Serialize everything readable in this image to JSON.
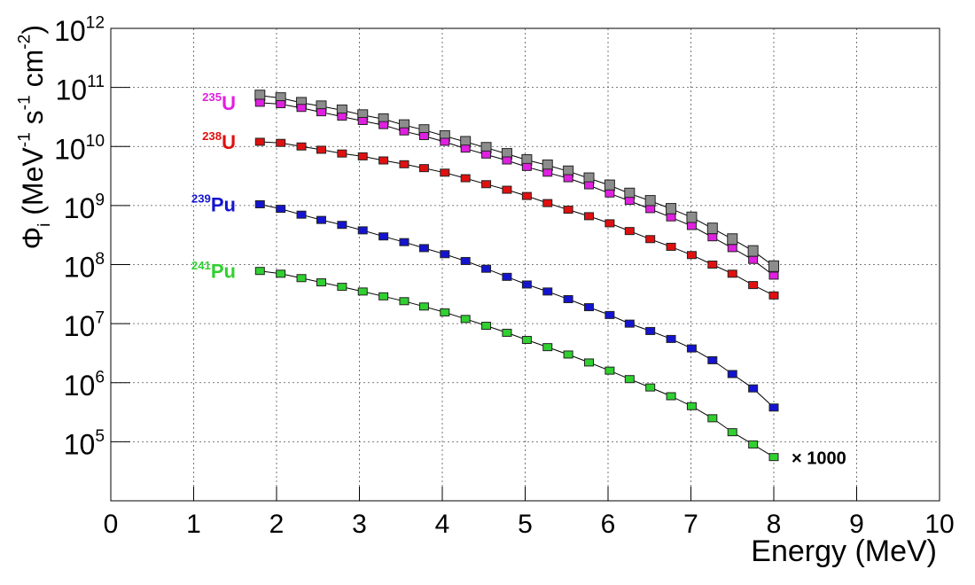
{
  "chart_data": {
    "type": "line",
    "x_label": "Energy (MeV)",
    "y_label": "Φ_{i} (MeV^{-1} s^{-1} cm^{-2})",
    "log_y": true,
    "grid": true,
    "xlim": [
      0,
      10
    ],
    "xticks": [
      0,
      1,
      2,
      3,
      4,
      5,
      6,
      7,
      8,
      9,
      10
    ],
    "ylim": [
      10000,
      1000000000000
    ],
    "yticks": [
      {
        "value": 100000,
        "label": "10^{5}"
      },
      {
        "value": 1000000,
        "label": "10^{6}"
      },
      {
        "value": 10000000,
        "label": "10^{7}"
      },
      {
        "value": 100000000,
        "label": "10^{8}"
      },
      {
        "value": 1000000000,
        "label": "10^{9}"
      },
      {
        "value": 10000000000,
        "label": "10^{10}"
      },
      {
        "value": 100000000000,
        "label": "10^{11}"
      },
      {
        "value": 1000000000000,
        "label": "10^{12}"
      }
    ],
    "x": [
      1.8,
      2.05,
      2.3,
      2.54,
      2.79,
      3.04,
      3.29,
      3.54,
      3.78,
      4.03,
      4.28,
      4.53,
      4.78,
      5.02,
      5.27,
      5.52,
      5.77,
      6.02,
      6.26,
      6.51,
      6.76,
      7.01,
      7.26,
      7.5,
      7.75,
      8.0
    ],
    "series": [
      {
        "color": "#8c8c8c",
        "values": [
          73000000000.0,
          66000000000.0,
          55000000000.0,
          48000000000.0,
          41000000000.0,
          34000000000.0,
          29000000000.0,
          23000000000.0,
          19000000000.0,
          15000000000.0,
          12000000000.0,
          9500000000.0,
          7500000000.0,
          5900000000.0,
          4800000000.0,
          3800000000.0,
          2900000000.0,
          2200000000.0,
          1600000000.0,
          1200000000.0,
          880000000.0,
          630000000.0,
          410000000.0,
          270000000.0,
          170000000.0,
          94000000.0
        ]
      },
      {
        "name": "^{235}U",
        "color": "#e020e0",
        "values": [
          55000000000.0,
          52000000000.0,
          45000000000.0,
          38000000000.0,
          32000000000.0,
          27000000000.0,
          23000000000.0,
          18000000000.0,
          15000000000.0,
          12000000000.0,
          9200000000.0,
          7300000000.0,
          5800000000.0,
          4500000000.0,
          3600000000.0,
          2900000000.0,
          2200000000.0,
          1600000000.0,
          1200000000.0,
          870000000.0,
          630000000.0,
          450000000.0,
          290000000.0,
          190000000.0,
          120000000.0,
          65000000.0
        ]
      },
      {
        "name": "^{238}U",
        "color": "#e01010",
        "values": [
          12000000000.0,
          11500000000.0,
          10000000000.0,
          8800000000.0,
          7600000000.0,
          6800000000.0,
          5800000000.0,
          5000000000.0,
          4300000000.0,
          3600000000.0,
          2900000000.0,
          2300000000.0,
          1850000000.0,
          1450000000.0,
          1100000000.0,
          850000000.0,
          660000000.0,
          500000000.0,
          370000000.0,
          270000000.0,
          200000000.0,
          145000000.0,
          100000000.0,
          70000000.0,
          45000000.0,
          30000000.0
        ]
      },
      {
        "name": "^{239}Pu",
        "color": "#1414d0",
        "values": [
          1050000000.0,
          880000000.0,
          700000000.0,
          570000000.0,
          470000000.0,
          380000000.0,
          300000000.0,
          240000000.0,
          190000000.0,
          150000000.0,
          115000000.0,
          85000000.0,
          62000000.0,
          46000000.0,
          35000000.0,
          26000000.0,
          19000000.0,
          14000000.0,
          10000000.0,
          7500000.0,
          5500000.0,
          3800000.0,
          2400000.0,
          1400000.0,
          800000.0,
          380000.0
        ]
      },
      {
        "name": "^{241}Pu",
        "color": "#30d030",
        "values": [
          78000000.0,
          70000000.0,
          59000000.0,
          50000000.0,
          42000000.0,
          35000000.0,
          29000000.0,
          24000000.0,
          19500000.0,
          15500000.0,
          12000000.0,
          9200000.0,
          7000000.0,
          5300000.0,
          4000000.0,
          3000000.0,
          2200000.0,
          1600000.0,
          1150000.0,
          830000.0,
          590000.0,
          400000.0,
          250000.0,
          145000.0,
          90000.0,
          55000.0
        ]
      }
    ],
    "annotation": "× 1000"
  }
}
